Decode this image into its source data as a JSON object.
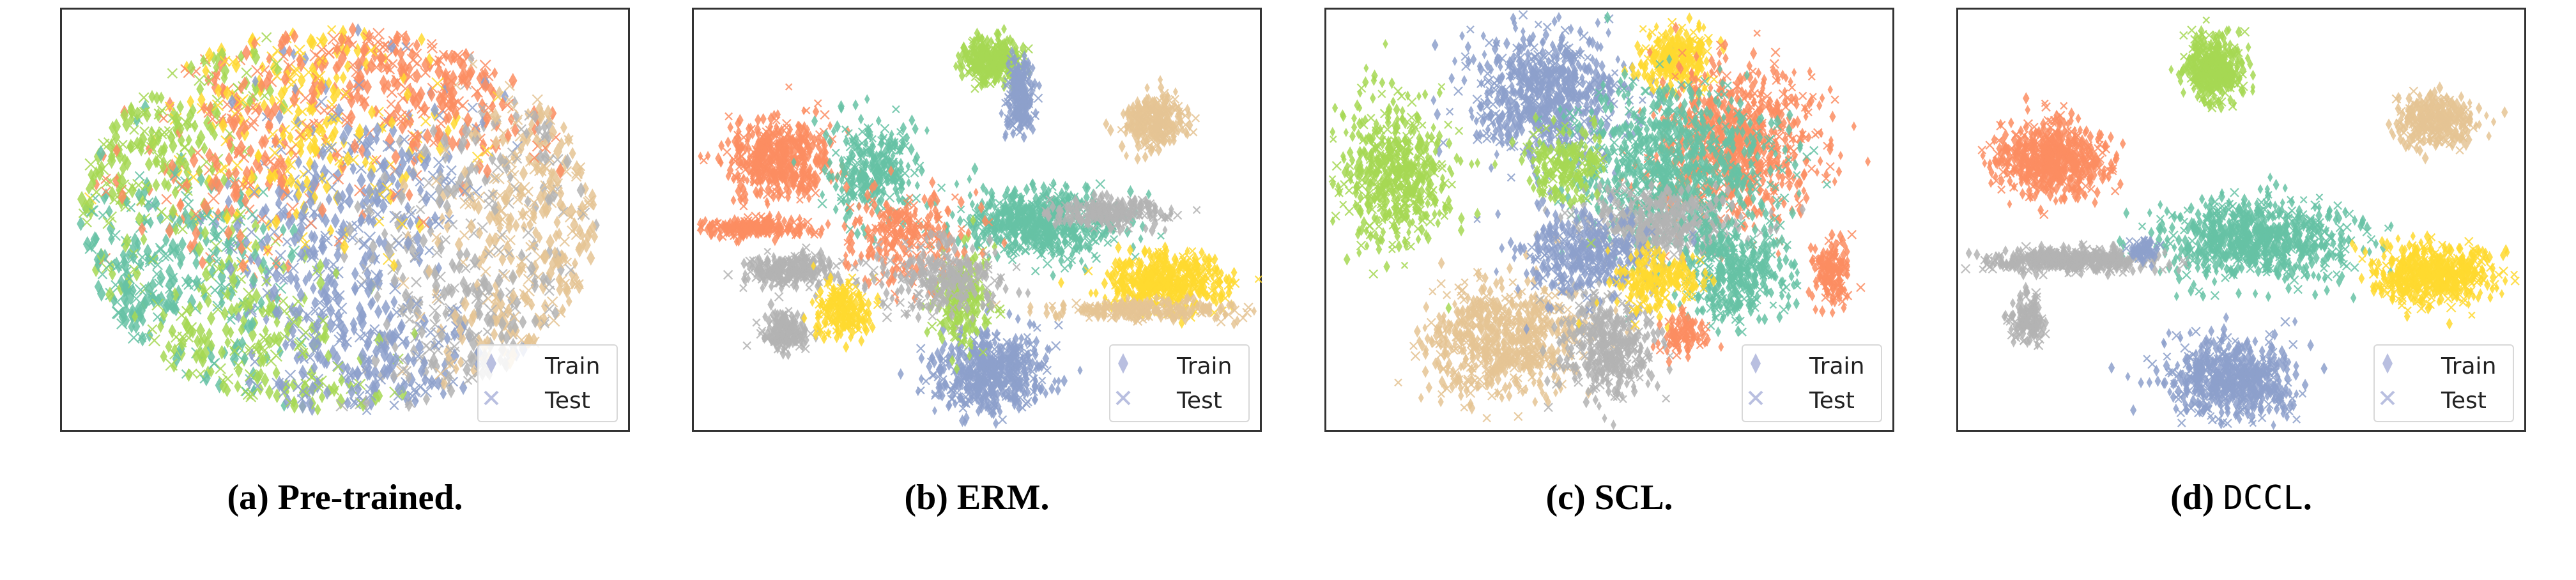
{
  "chart_data": [
    {
      "type": "scatter",
      "caption": {
        "label": "(a)",
        "title": "Pre-trained."
      },
      "legend": {
        "placement": "bottom-right",
        "entries": [
          {
            "label": "Train",
            "marker": "thin_diamond"
          },
          {
            "label": "Test",
            "marker": "x"
          }
        ]
      },
      "axes_visible": false,
      "grid": false
    },
    {
      "type": "scatter",
      "caption": {
        "label": "(b)",
        "title": "ERM."
      },
      "legend": {
        "placement": "bottom-right",
        "entries": [
          {
            "label": "Train",
            "marker": "thin_diamond"
          },
          {
            "label": "Test",
            "marker": "x"
          }
        ]
      },
      "axes_visible": false,
      "grid": false
    },
    {
      "type": "scatter",
      "caption": {
        "label": "(c)",
        "title": "SCL."
      },
      "legend": {
        "placement": "bottom-right",
        "entries": [
          {
            "label": "Train",
            "marker": "thin_diamond"
          },
          {
            "label": "Test",
            "marker": "x"
          }
        ]
      },
      "axes_visible": false,
      "grid": false
    },
    {
      "type": "scatter",
      "caption": {
        "label": "(d)",
        "title": "DCCL",
        "title_suffix": "."
      },
      "legend": {
        "placement": "bottom-right",
        "entries": [
          {
            "label": "Train",
            "marker": "thin_diamond"
          },
          {
            "label": "Test",
            "marker": "x"
          }
        ]
      },
      "axes_visible": false,
      "grid": false
    }
  ],
  "palette": {
    "green_teal": "#66c2a5",
    "orange": "#fc8d62",
    "blue": "#8da0cb",
    "lime": "#a6d854",
    "yellow": "#ffd92f",
    "tan": "#e5c494",
    "gray": "#b3b3b3",
    "legend_marker": "#b9bfe0"
  }
}
